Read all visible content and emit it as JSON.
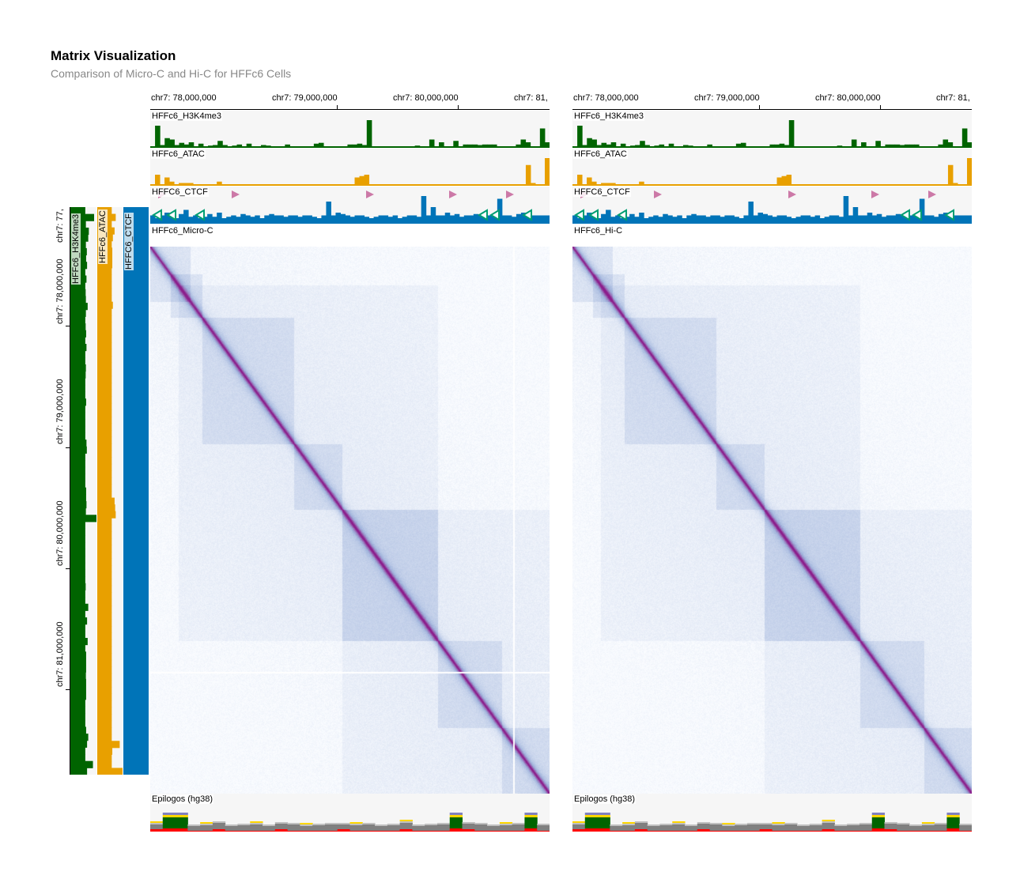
{
  "header": {
    "title": "Matrix Visualization",
    "subtitle": "Comparison of Micro-C and Hi-C for HFFc6 Cells"
  },
  "axis_ticks": [
    "chr7: 78,000,000",
    "chr7: 79,000,000",
    "chr7: 80,000,000",
    "chr7: 81,"
  ],
  "vertical_axis_ticks": [
    "chr7: 77,",
    "chr7: 78,000,000",
    "chr7: 79,000,000",
    "chr7: 80,000,000",
    "chr7: 81,000,000"
  ],
  "panels": [
    {
      "tracks": {
        "h3k4me3": "HFFc6_H3K4me3",
        "atac": "HFFc6_ATAC",
        "ctcf": "HFFC6_CTCF"
      },
      "matrix_label": "HFFc6_Micro-C",
      "epilogos_label": "Epilogos (hg38)"
    },
    {
      "tracks": {
        "h3k4me3": "HFFc6_H3K4me3",
        "atac": "HFFc6_ATAC",
        "ctcf": "HFFC6_CTCF"
      },
      "matrix_label": "HFFc6_Hi-C",
      "epilogos_label": "Epilogos (hg38)"
    }
  ],
  "vertical_tracks": {
    "h3k4me3": "HFFc6_H3K4me3",
    "atac": "HFFc6_ATAC",
    "ctcf": "HFFC6_CTCF"
  },
  "colors": {
    "h3k4me3": "#006400",
    "atac": "#e8a000",
    "ctcf": "#0074b8",
    "ctcf_forward": "#cc79a7",
    "ctcf_reverse": "#009e73",
    "matrix_low": "#e8eef7",
    "matrix_mid": "#9fb4dc",
    "matrix_high": "#8b1a8b",
    "track_bg": "#f6f6f6"
  },
  "track_values": {
    "h3k4me3": [
      0.05,
      0.8,
      0.1,
      0.35,
      0.3,
      0.1,
      0.18,
      0.12,
      0.2,
      0.05,
      0.15,
      0.05,
      0.08,
      0.1,
      0.25,
      0.1,
      0.05,
      0.08,
      0.12,
      0.05,
      0.15,
      0.05,
      0.05,
      0.1,
      0.08,
      0.05,
      0.05,
      0.05,
      0.12,
      0.05,
      0.05,
      0.05,
      0.05,
      0.05,
      0.15,
      0.18,
      0.05,
      0.05,
      0.05,
      0.05,
      0.05,
      0.12,
      0.12,
      0.15,
      0.1,
      1.0,
      0.05,
      0.05,
      0.05,
      0.05,
      0.05,
      0.05,
      0.05,
      0.05,
      0.05,
      0.08,
      0.05,
      0.05,
      0.3,
      0.05,
      0.2,
      0.05,
      0.05,
      0.25,
      0.05,
      0.12,
      0.12,
      0.12,
      0.1,
      0.12,
      0.12,
      0.12,
      0.05,
      0.05,
      0.05,
      0.05,
      0.12,
      0.3,
      0.2,
      0.05,
      0.05,
      0.7,
      0.2
    ],
    "atac": [
      0.05,
      0.4,
      0.05,
      0.3,
      0.15,
      0.05,
      0.1,
      0.1,
      0.1,
      0.05,
      0.05,
      0.05,
      0.05,
      0.05,
      0.15,
      0.05,
      0.05,
      0.05,
      0.05,
      0.05,
      0.05,
      0.05,
      0.05,
      0.05,
      0.05,
      0.05,
      0.05,
      0.05,
      0.05,
      0.05,
      0.05,
      0.05,
      0.05,
      0.05,
      0.05,
      0.05,
      0.05,
      0.05,
      0.05,
      0.05,
      0.05,
      0.05,
      0.05,
      0.3,
      0.35,
      0.4,
      0.05,
      0.05,
      0.05,
      0.05,
      0.05,
      0.05,
      0.05,
      0.05,
      0.05,
      0.05,
      0.05,
      0.05,
      0.05,
      0.05,
      0.05,
      0.05,
      0.05,
      0.05,
      0.05,
      0.05,
      0.05,
      0.05,
      0.05,
      0.05,
      0.05,
      0.05,
      0.05,
      0.05,
      0.05,
      0.05,
      0.05,
      0.05,
      0.05,
      0.75,
      0.1,
      0.05,
      0.05,
      1.0
    ],
    "ctcf": [
      0.3,
      0.2,
      0.3,
      0.4,
      0.25,
      0.2,
      0.35,
      0.5,
      0.25,
      0.3,
      0.2,
      0.25,
      0.35,
      0.25,
      0.4,
      0.2,
      0.25,
      0.3,
      0.25,
      0.35,
      0.3,
      0.25,
      0.3,
      0.2,
      0.3,
      0.35,
      0.3,
      0.3,
      0.25,
      0.3,
      0.3,
      0.25,
      0.3,
      0.3,
      0.25,
      0.2,
      0.3,
      0.8,
      0.3,
      0.4,
      0.35,
      0.3,
      0.25,
      0.3,
      0.3,
      0.25,
      0.2,
      0.25,
      0.3,
      0.3,
      0.25,
      0.3,
      0.2,
      0.25,
      0.3,
      0.3,
      0.25,
      1.0,
      0.3,
      0.6,
      0.3,
      0.3,
      0.4,
      0.3,
      0.35,
      0.25,
      0.3,
      0.3,
      0.35,
      0.3,
      0.25,
      0.3,
      0.3,
      0.9,
      0.3,
      0.3,
      0.25,
      0.35,
      0.4,
      0.3,
      0.3,
      0.3,
      0.3,
      0.3
    ]
  }
}
